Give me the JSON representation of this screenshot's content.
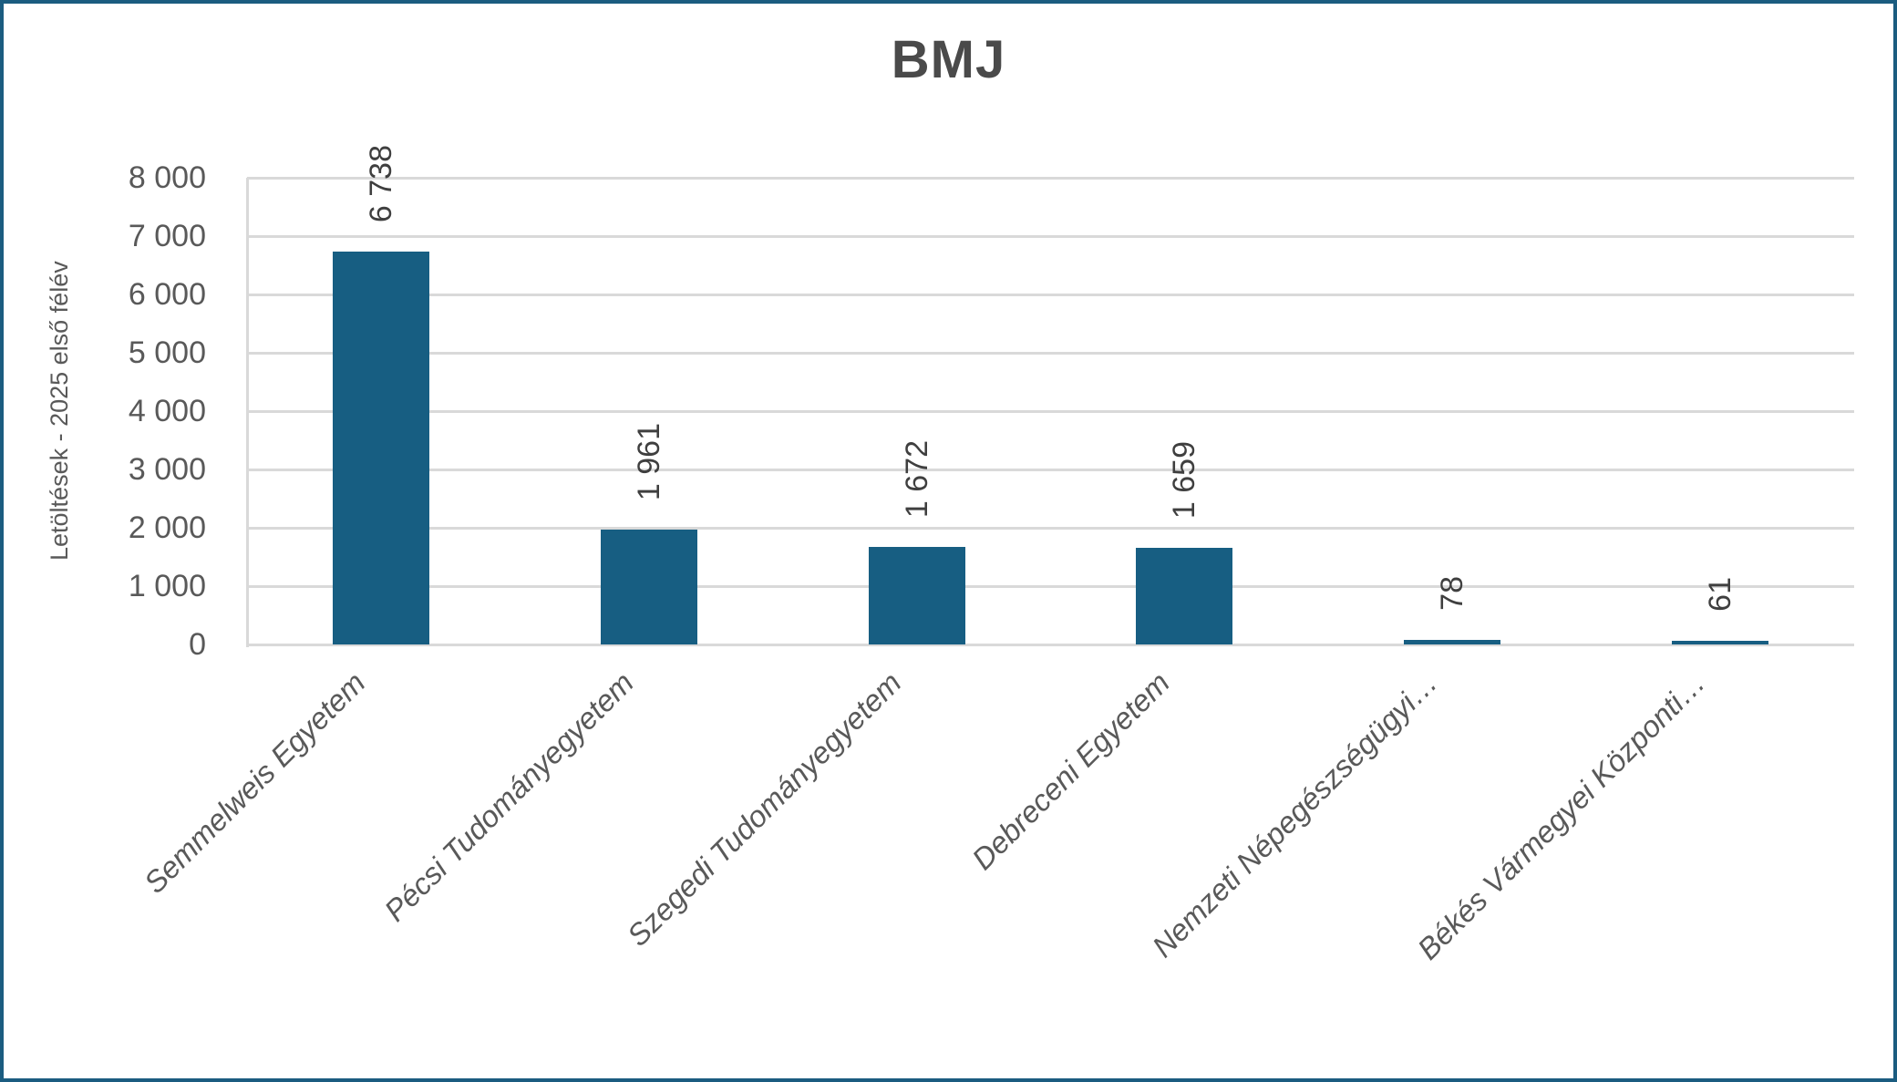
{
  "chart_data": {
    "type": "bar",
    "title": "BMJ",
    "ylabel": "Letöltések - 2025 első félév",
    "xlabel": "",
    "categories": [
      "Semmelweis Egyetem",
      "Pécsi Tudományegyetem",
      "Szegedi Tudományegyetem",
      "Debreceni Egyetem",
      "Nemzeti Népegészségügyi…",
      "Békés Vármegyei Központi…"
    ],
    "values": [
      6738,
      1961,
      1672,
      1659,
      78,
      61
    ],
    "value_labels": [
      "6 738",
      "1 961",
      "1 672",
      "1 659",
      "78",
      "61"
    ],
    "ylim": [
      0,
      8000
    ],
    "ytick_step": 1000,
    "ytick_labels": [
      "0",
      "1 000",
      "2 000",
      "3 000",
      "4 000",
      "5 000",
      "6 000",
      "7 000",
      "8 000"
    ],
    "grid": "horizontal-only",
    "legend": "none",
    "value_label_rotation_deg": -90,
    "category_label_rotation_deg": -45,
    "colors": {
      "bar": "#175e82",
      "frame_border": "#1b5c80",
      "gridline": "#d9d9d9",
      "axis_text": "#595959",
      "value_text": "#3f3f3f",
      "title_text": "#4a4a4a"
    }
  }
}
